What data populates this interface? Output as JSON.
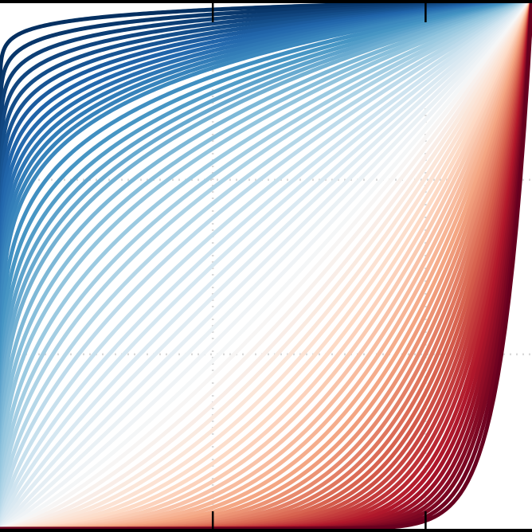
{
  "chart_data": {
    "type": "line",
    "title": "",
    "xlabel": "",
    "ylabel": "",
    "xlim": [
      0,
      1
    ],
    "ylim": [
      0,
      1
    ],
    "grid": true,
    "grid_style": "dotted",
    "legend": "none",
    "colormap": [
      "#053061",
      "#2166ac",
      "#4393c3",
      "#92c5de",
      "#d1e5f0",
      "#f7f7f7",
      "#fddbc7",
      "#f4a582",
      "#d6604d",
      "#b2182b",
      "#67001f"
    ],
    "series_family": "y = x^p",
    "exponents": [
      0.02,
      0.03,
      0.04,
      0.05,
      0.06,
      0.07,
      0.08,
      0.09,
      0.1,
      0.11,
      0.12,
      0.13,
      0.14,
      0.15,
      0.17,
      0.19,
      0.21,
      0.23,
      0.25,
      0.27,
      0.3,
      0.33,
      0.36,
      0.4,
      0.44,
      0.48,
      0.53,
      0.58,
      0.64,
      0.7,
      0.76,
      0.83,
      0.9,
      0.98,
      1.06,
      1.15,
      1.25,
      1.35,
      1.46,
      1.58,
      1.7,
      1.83,
      1.97,
      2.12,
      2.28,
      2.45,
      2.63,
      2.83,
      3.04,
      3.26,
      3.5,
      3.76,
      4.03,
      4.32,
      4.63,
      4.96,
      5.31,
      5.68,
      6.08,
      6.5,
      6.95,
      7.43,
      7.94,
      8.5,
      9.1,
      9.8,
      10.5,
      11.3,
      12.2,
      13.2,
      14.3,
      15.5,
      17.0,
      18.7
    ]
  }
}
